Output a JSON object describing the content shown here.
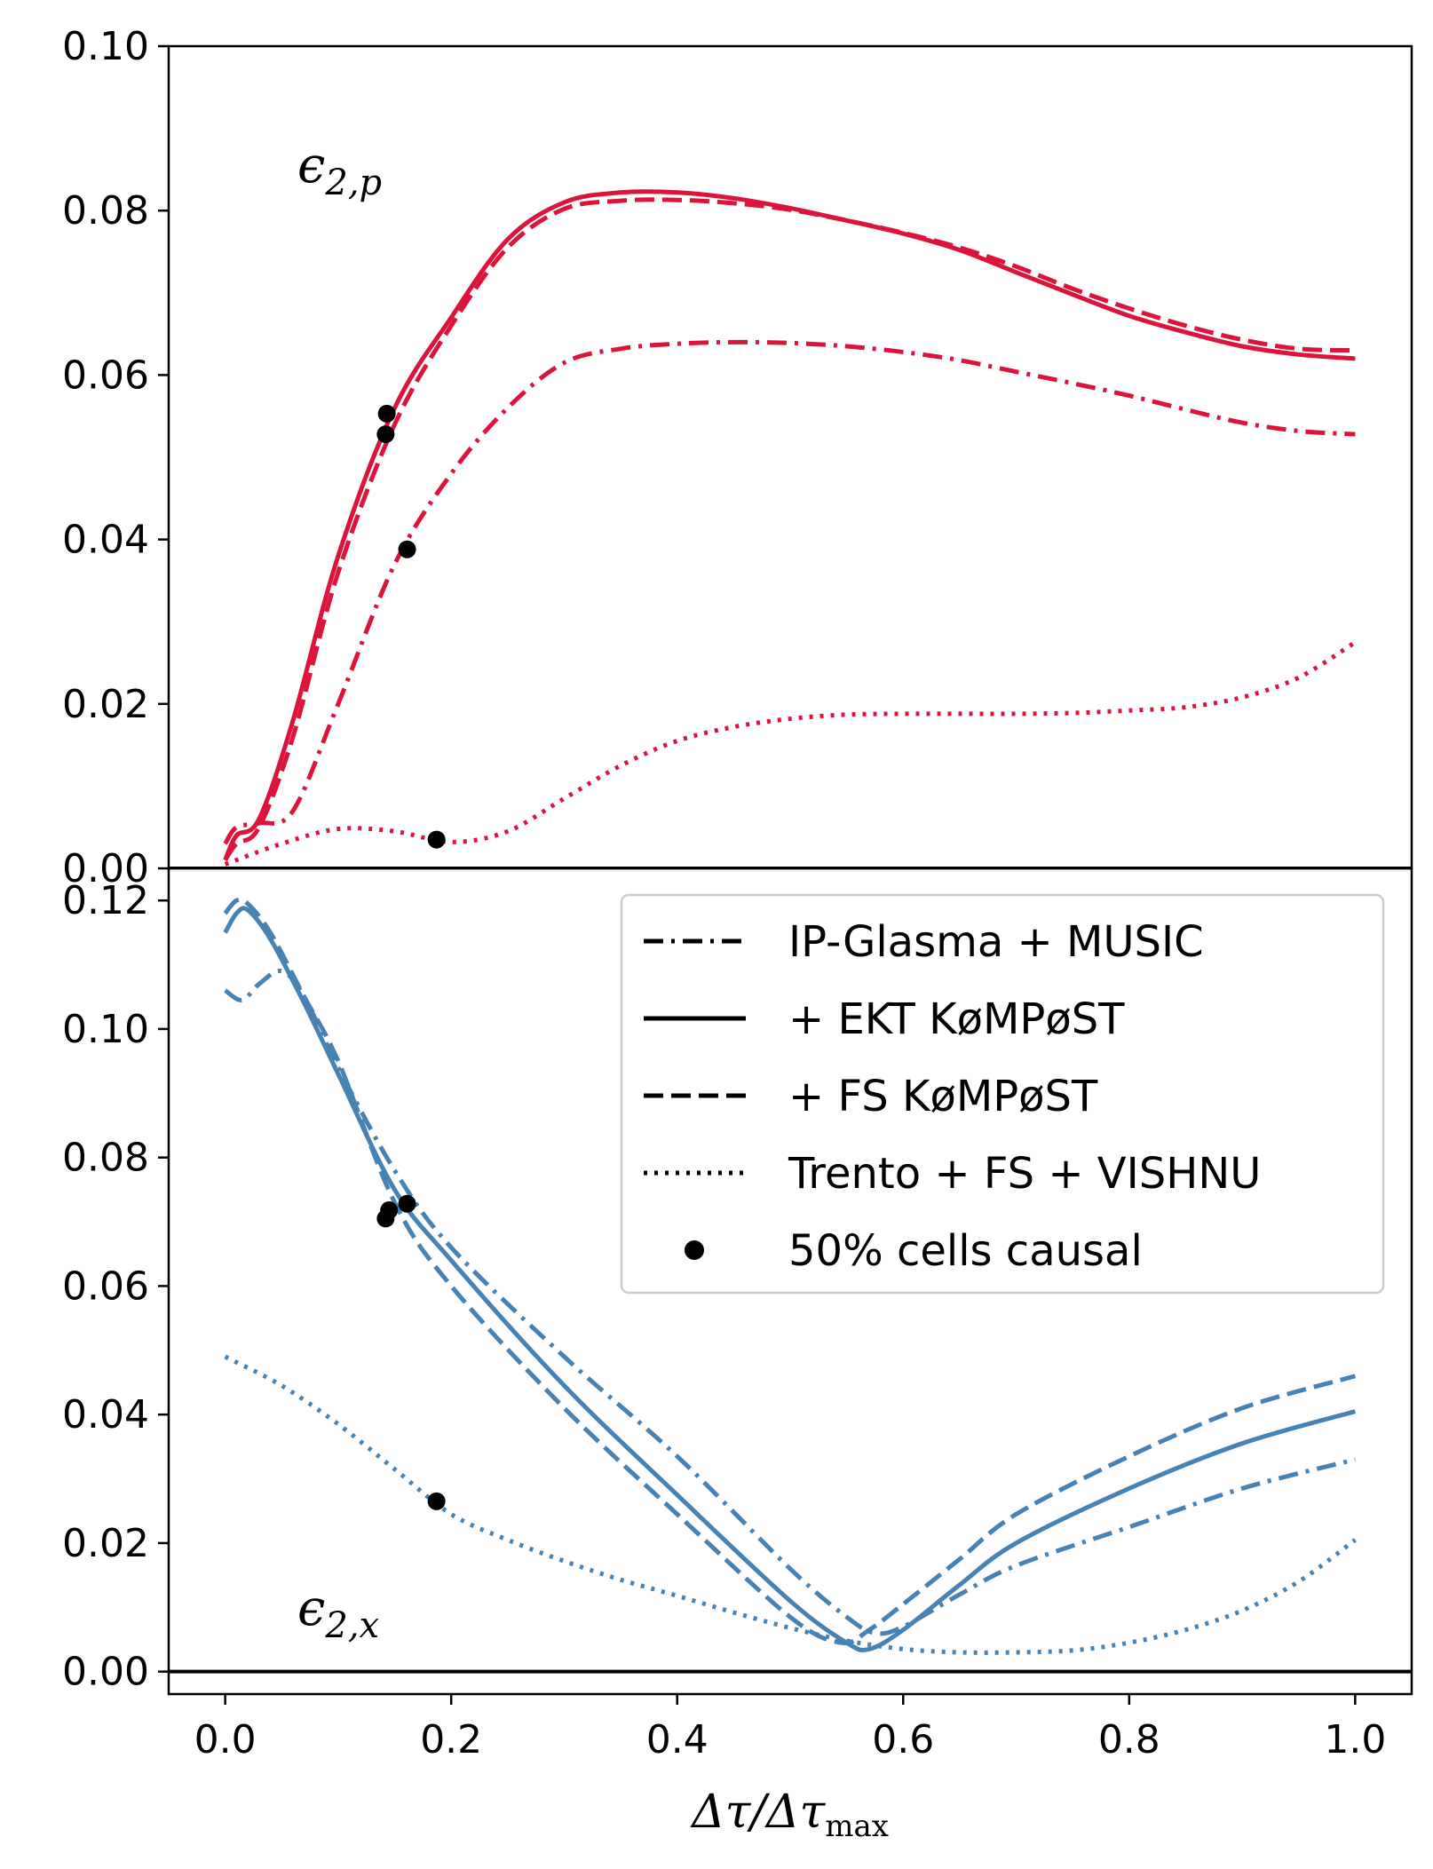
{
  "chart_data": [
    {
      "type": "line",
      "panel": "top",
      "annotation": "ϵ2,p",
      "xlim": [
        -0.05,
        1.05
      ],
      "ylim": [
        0.0,
        0.1
      ],
      "yticks": [
        "0.00",
        "0.02",
        "0.04",
        "0.06",
        "0.08",
        "0.10"
      ],
      "color": "#dc143c",
      "series": [
        {
          "name": "IP-Glasma + MUSIC",
          "style": "dashdot",
          "x": [
            0.0,
            0.01,
            0.03,
            0.06,
            0.1,
            0.15,
            0.2,
            0.25,
            0.3,
            0.35,
            0.4,
            0.45,
            0.5,
            0.55,
            0.6,
            0.65,
            0.7,
            0.75,
            0.8,
            0.85,
            0.9,
            0.95,
            1.0
          ],
          "y": [
            0.003,
            0.005,
            0.0055,
            0.007,
            0.02,
            0.037,
            0.048,
            0.056,
            0.0615,
            0.0632,
            0.0638,
            0.064,
            0.0639,
            0.0635,
            0.0628,
            0.0618,
            0.0604,
            0.059,
            0.0575,
            0.0558,
            0.0542,
            0.0532,
            0.0528
          ]
        },
        {
          "name": "+ EKT KøMPøST",
          "style": "solid",
          "x": [
            0.0,
            0.01,
            0.03,
            0.06,
            0.1,
            0.15,
            0.2,
            0.25,
            0.3,
            0.35,
            0.4,
            0.45,
            0.5,
            0.55,
            0.6,
            0.65,
            0.7,
            0.75,
            0.8,
            0.85,
            0.9,
            0.95,
            1.0
          ],
          "y": [
            0.001,
            0.004,
            0.006,
            0.018,
            0.038,
            0.056,
            0.067,
            0.0765,
            0.081,
            0.0822,
            0.0822,
            0.0815,
            0.0803,
            0.0788,
            0.0772,
            0.0752,
            0.0725,
            0.0698,
            0.0672,
            0.0652,
            0.0635,
            0.0625,
            0.062
          ]
        },
        {
          "name": "+ FS KøMPøST",
          "style": "dashed",
          "x": [
            0.0,
            0.01,
            0.03,
            0.06,
            0.1,
            0.15,
            0.2,
            0.25,
            0.3,
            0.35,
            0.4,
            0.45,
            0.5,
            0.55,
            0.6,
            0.65,
            0.7,
            0.75,
            0.8,
            0.85,
            0.9,
            0.95,
            1.0
          ],
          "y": [
            0.001,
            0.003,
            0.005,
            0.016,
            0.036,
            0.054,
            0.066,
            0.0755,
            0.0802,
            0.0812,
            0.0813,
            0.0809,
            0.0801,
            0.0788,
            0.0773,
            0.0755,
            0.0732,
            0.0705,
            0.0681,
            0.066,
            0.0643,
            0.0632,
            0.063
          ]
        },
        {
          "name": "Trento + FS + VISHNU",
          "style": "dotted",
          "x": [
            0.0,
            0.05,
            0.1,
            0.15,
            0.2,
            0.25,
            0.3,
            0.35,
            0.4,
            0.45,
            0.5,
            0.55,
            0.6,
            0.65,
            0.7,
            0.75,
            0.8,
            0.85,
            0.9,
            0.95,
            1.0
          ],
          "y": [
            0.0005,
            0.003,
            0.0048,
            0.0045,
            0.0032,
            0.0045,
            0.0085,
            0.0125,
            0.0155,
            0.0172,
            0.0182,
            0.0187,
            0.0188,
            0.0188,
            0.0188,
            0.0189,
            0.0192,
            0.0196,
            0.0208,
            0.0232,
            0.0275
          ]
        }
      ],
      "causal_points": {
        "name": "50% cells causal",
        "x": [
          0.143,
          0.142,
          0.161,
          0.187
        ],
        "y": [
          0.0553,
          0.0528,
          0.0388,
          0.0035
        ]
      }
    },
    {
      "type": "line",
      "panel": "bottom",
      "annotation": "ϵ2,x",
      "xlabel": "Δτ/Δτmax",
      "xlim": [
        -0.05,
        1.05
      ],
      "ylim": [
        -0.0035,
        0.125
      ],
      "xticks": [
        "0.0",
        "0.2",
        "0.4",
        "0.6",
        "0.8",
        "1.0"
      ],
      "yticks": [
        "0.00",
        "0.02",
        "0.04",
        "0.06",
        "0.08",
        "0.10",
        "0.12"
      ],
      "color": "#4682b4",
      "series": [
        {
          "name": "IP-Glasma + MUSIC",
          "style": "dashdot",
          "x": [
            0.0,
            0.015,
            0.03,
            0.05,
            0.07,
            0.1,
            0.15,
            0.2,
            0.3,
            0.4,
            0.5,
            0.55,
            0.575,
            0.6,
            0.65,
            0.7,
            0.8,
            0.9,
            1.0
          ],
          "y": [
            0.106,
            0.1045,
            0.107,
            0.109,
            0.105,
            0.094,
            0.078,
            0.066,
            0.049,
            0.0335,
            0.016,
            0.0085,
            0.006,
            0.007,
            0.012,
            0.0165,
            0.0225,
            0.0285,
            0.033
          ]
        },
        {
          "name": "+ EKT KøMPøST",
          "style": "solid",
          "x": [
            0.0,
            0.01,
            0.02,
            0.04,
            0.07,
            0.1,
            0.15,
            0.2,
            0.3,
            0.4,
            0.5,
            0.55,
            0.57,
            0.6,
            0.65,
            0.7,
            0.8,
            0.9,
            1.0
          ],
          "y": [
            0.115,
            0.118,
            0.1185,
            0.114,
            0.104,
            0.093,
            0.075,
            0.064,
            0.0445,
            0.0275,
            0.011,
            0.0045,
            0.0035,
            0.0065,
            0.0135,
            0.02,
            0.0285,
            0.0355,
            0.0405
          ]
        },
        {
          "name": "+ FS KøMPøST",
          "style": "dashed",
          "x": [
            0.0,
            0.01,
            0.02,
            0.04,
            0.07,
            0.1,
            0.15,
            0.2,
            0.3,
            0.4,
            0.5,
            0.545,
            0.57,
            0.6,
            0.65,
            0.7,
            0.8,
            0.9,
            1.0
          ],
          "y": [
            0.118,
            0.12,
            0.1195,
            0.115,
            0.105,
            0.095,
            0.073,
            0.06,
            0.041,
            0.0245,
            0.0085,
            0.0045,
            0.0065,
            0.0105,
            0.0175,
            0.0245,
            0.0335,
            0.041,
            0.046
          ]
        },
        {
          "name": "Trento + FS + VISHNU",
          "style": "dotted",
          "x": [
            0.0,
            0.05,
            0.1,
            0.15,
            0.2,
            0.25,
            0.3,
            0.35,
            0.4,
            0.45,
            0.5,
            0.55,
            0.6,
            0.65,
            0.7,
            0.75,
            0.8,
            0.85,
            0.9,
            0.95,
            1.0
          ],
          "y": [
            0.049,
            0.0445,
            0.0385,
            0.0315,
            0.0245,
            0.0205,
            0.0172,
            0.0143,
            0.0118,
            0.0092,
            0.0068,
            0.0048,
            0.0035,
            0.003,
            0.003,
            0.0033,
            0.0045,
            0.0065,
            0.0095,
            0.014,
            0.0205
          ]
        }
      ],
      "causal_points": {
        "name": "50% cells causal",
        "x": [
          0.142,
          0.145,
          0.161,
          0.187
        ],
        "y": [
          0.0705,
          0.0718,
          0.0728,
          0.0265
        ]
      }
    }
  ],
  "legend": {
    "placement": "upper-right",
    "entries": [
      {
        "label": "IP-Glasma + MUSIC",
        "style": "dashdot"
      },
      {
        "label": "+ EKT KøMPøST",
        "style": "solid"
      },
      {
        "label": "+ FS KøMPøST",
        "style": "dashed"
      },
      {
        "label": "Trento + FS + VISHNU",
        "style": "dotted"
      },
      {
        "label": "50% cells causal",
        "style": "marker"
      }
    ]
  }
}
